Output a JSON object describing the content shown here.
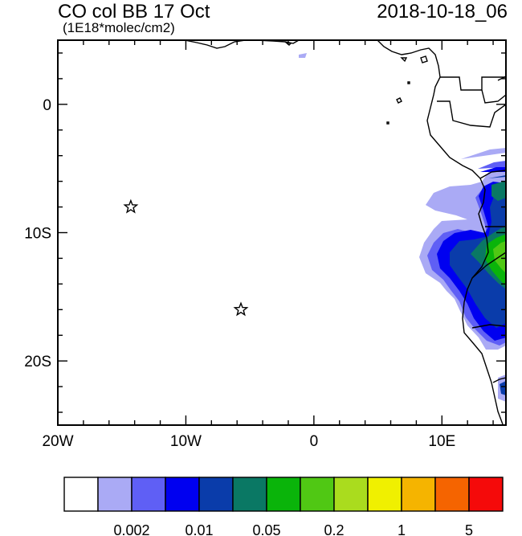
{
  "header": {
    "title": "CO col BB 17 Oct",
    "subtitle": "(1E18*molec/cm2)",
    "timestamp": "2018-10-18_06"
  },
  "axes": {
    "x_ticks": [
      {
        "value": -20,
        "label": "20W"
      },
      {
        "value": -10,
        "label": "10W"
      },
      {
        "value": 0,
        "label": "0"
      },
      {
        "value": 10,
        "label": "10E"
      }
    ],
    "y_ticks": [
      {
        "value": 0,
        "label": "0"
      },
      {
        "value": -10,
        "label": "10S"
      },
      {
        "value": -20,
        "label": "20S"
      }
    ],
    "lon_range": [
      -20,
      15
    ],
    "lat_range": [
      -25,
      5
    ]
  },
  "markers": [
    {
      "name": "star-marker-1",
      "lon": -14.3,
      "lat": -8.0,
      "icon": "star-icon"
    },
    {
      "name": "star-marker-2",
      "lon": -5.7,
      "lat": -16.0,
      "icon": "star-icon"
    }
  ],
  "colorbar": {
    "colors": [
      "#ffffff",
      "#aaaaf5",
      "#5f5ff5",
      "#0000f0",
      "#0a3caa",
      "#0a7864",
      "#0ab40a",
      "#50c814",
      "#aadc1e",
      "#f0f000",
      "#f5b400",
      "#f56400",
      "#f50a0a"
    ],
    "labels": [
      {
        "after_box": 2,
        "text": "0.002"
      },
      {
        "after_box": 4,
        "text": "0.01"
      },
      {
        "after_box": 6,
        "text": "0.05"
      },
      {
        "after_box": 8,
        "text": "0.2"
      },
      {
        "after_box": 10,
        "text": "1"
      },
      {
        "after_box": 12,
        "text": "5"
      }
    ]
  }
}
